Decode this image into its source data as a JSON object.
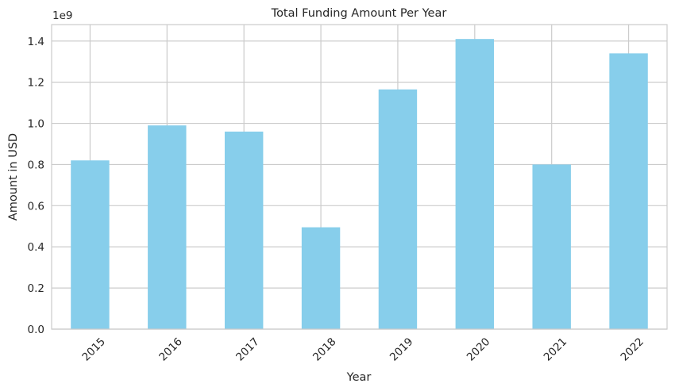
{
  "chart_data": {
    "type": "bar",
    "title": "Total Funding Amount Per Year",
    "xlabel": "Year",
    "ylabel": "Amount in USD",
    "offset_label": "1e9",
    "categories": [
      "2015",
      "2016",
      "2017",
      "2018",
      "2019",
      "2020",
      "2021",
      "2022"
    ],
    "values": [
      0.82,
      0.99,
      0.96,
      0.495,
      1.165,
      1.41,
      0.8,
      1.34
    ],
    "ylim": [
      0,
      1.48
    ],
    "yticks": [
      "0.0",
      "0.2",
      "0.4",
      "0.6",
      "0.8",
      "1.0",
      "1.2",
      "1.4"
    ],
    "grid": true,
    "legend": "none",
    "colors": {
      "bar": "#87ceeb",
      "grid": "#cccccc",
      "spine": "#cccccc",
      "text": "#262626",
      "background": "#ffffff"
    }
  }
}
